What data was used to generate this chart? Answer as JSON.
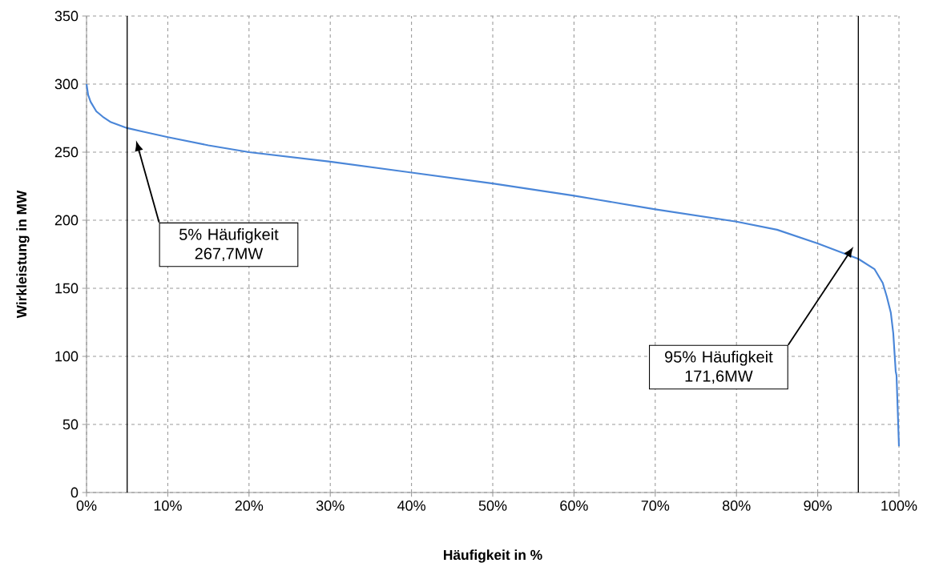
{
  "chart_data": {
    "type": "line",
    "xlabel": "Häufigkeit in %",
    "ylabel": "Wirkleistung in MW",
    "x": [
      0,
      0.2,
      0.5,
      1.2,
      2,
      3,
      5,
      7,
      10,
      15,
      20,
      30,
      40,
      50,
      60,
      63,
      70,
      80,
      85,
      90,
      95,
      97,
      98,
      98.5,
      99,
      99.3,
      99.6,
      99.7,
      100
    ],
    "series": [
      {
        "color": "#4a86d8",
        "values": [
          300,
          292,
          287,
          280,
          276,
          272,
          267.7,
          265,
          261,
          255,
          250,
          243,
          235,
          227,
          218,
          215,
          208,
          199,
          193,
          183,
          171.6,
          164,
          154,
          144,
          132,
          117,
          89,
          86,
          34
        ]
      }
    ],
    "xlim": [
      0,
      100
    ],
    "ylim": [
      0,
      350
    ],
    "xticks": [
      {
        "value": 0,
        "label": "0%"
      },
      {
        "value": 10,
        "label": "10%"
      },
      {
        "value": 20,
        "label": "20%"
      },
      {
        "value": 30,
        "label": "30%"
      },
      {
        "value": 40,
        "label": "40%"
      },
      {
        "value": 50,
        "label": "50%"
      },
      {
        "value": 60,
        "label": "60%"
      },
      {
        "value": 70,
        "label": "70%"
      },
      {
        "value": 80,
        "label": "80%"
      },
      {
        "value": 90,
        "label": "90%"
      },
      {
        "value": 100,
        "label": "100%"
      }
    ],
    "yticks": [
      0,
      50,
      100,
      150,
      200,
      250,
      300,
      350
    ],
    "grid": true,
    "marker": "none",
    "line_style": "solid",
    "ref_lines": [
      {
        "axis": "x",
        "value": 5,
        "color": "#000000"
      },
      {
        "axis": "x",
        "value": 95,
        "color": "#000000"
      }
    ],
    "annotations": [
      "5% Häufigkeit 267,7MW",
      "95% Häufigkeit 171,6MW"
    ]
  }
}
